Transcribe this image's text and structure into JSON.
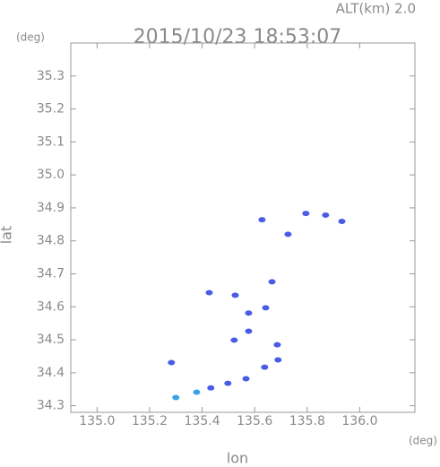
{
  "chart_data": {
    "type": "scatter",
    "title": "2015/10/23 18:53:07",
    "annotation": "ALT(km) 2.0",
    "y_unit": "(deg)",
    "x_unit": "(deg)",
    "xlabel": "lon",
    "ylabel": "lat",
    "xlim": [
      134.9,
      136.21
    ],
    "ylim": [
      34.28,
      35.4
    ],
    "xticks": [
      {
        "value": 135,
        "label": "135.0"
      },
      135.2,
      135.4,
      135.6,
      135.8,
      {
        "value": 136,
        "label": "136.0"
      }
    ],
    "yticks": [
      34.3,
      34.4,
      34.5,
      34.6,
      34.7,
      34.8,
      34.9,
      {
        "value": 35,
        "label": "35.0"
      },
      35.1,
      35.2,
      35.3
    ],
    "grid": false,
    "series": [
      {
        "color": "#4a5ce6",
        "x": [
          135.283,
          135.433,
          135.498,
          135.567,
          135.522,
          135.577,
          135.577,
          135.526,
          135.427,
          135.642,
          135.666,
          135.638,
          135.689,
          135.686,
          135.795,
          135.87,
          135.932,
          135.628,
          135.727
        ],
        "y": [
          34.431,
          34.354,
          34.368,
          34.382,
          34.499,
          34.526,
          34.581,
          34.635,
          34.643,
          34.597,
          34.676,
          34.417,
          34.439,
          34.485,
          34.883,
          34.878,
          34.859,
          34.864,
          34.82
        ]
      },
      {
        "color": "#3aa2e6",
        "x": [
          135.3,
          135.379
        ],
        "y": [
          34.325,
          34.341
        ]
      }
    ]
  }
}
